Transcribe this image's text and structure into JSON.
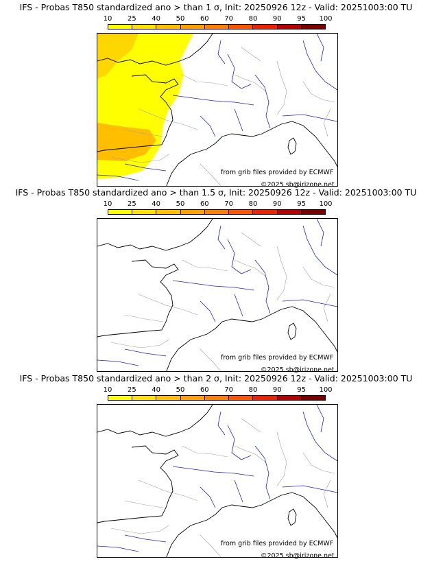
{
  "colorbar": {
    "ticks": [
      "10",
      "25",
      "40",
      "50",
      "60",
      "70",
      "80",
      "90",
      "95",
      "100"
    ],
    "colors": [
      "#ffff00",
      "#ffe000",
      "#ffbf00",
      "#ff9f00",
      "#ff8000",
      "#ff5500",
      "#ee2200",
      "#b80000",
      "#7a0000"
    ]
  },
  "panels": [
    {
      "title": "IFS - Probas T850  standardized ano > than 1 σ, Init: 20250926 12z - Valid: 20251003:00 TU",
      "highlight": true
    },
    {
      "title": "IFS - Probas T850  standardized ano > than 1.5 σ, Init: 20250926 12z - Valid: 20251003:00 TU",
      "highlight": false
    },
    {
      "title": "IFS - Probas T850  standardized ano > than 2 σ, Init: 20250926 12z - Valid: 20251003:00 TU",
      "highlight": false
    }
  ],
  "credits": {
    "source": "from grib files provided by ECMWF",
    "copyright": "©2025 sb@irizone.net"
  },
  "colors": {
    "coast": "#000000",
    "rivers": "#1f1fd0",
    "borders": "#a0a0a0",
    "prob_low": "#ffff00",
    "prob_mid": "#ffd700",
    "prob_high": "#ffbf00"
  }
}
